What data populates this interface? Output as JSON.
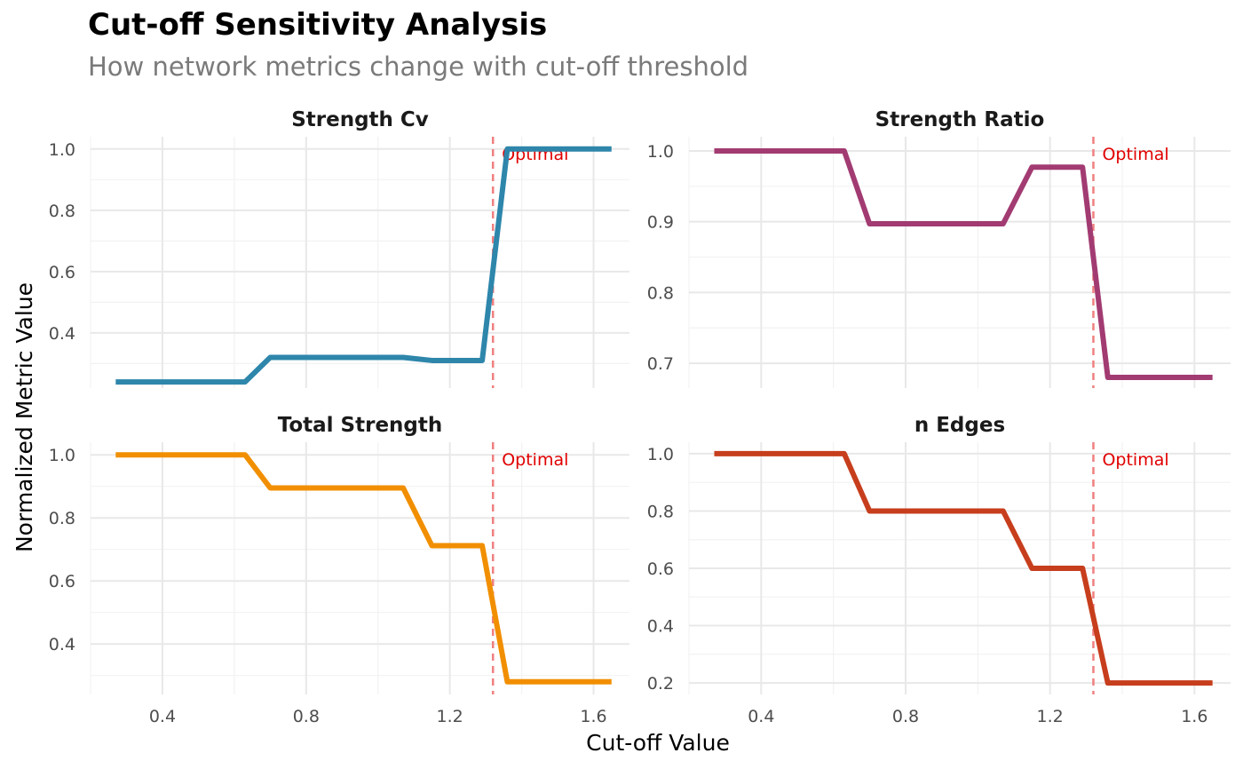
{
  "title": "Cut-off Sensitivity Analysis",
  "subtitle": "How network metrics change with cut-off threshold",
  "xlabel": "Cut-off Value",
  "ylabel": "Normalized Metric Value",
  "colors": {
    "optimal_line": "#f08080",
    "optimal_text": "#e00000"
  },
  "chart_data": [
    {
      "type": "line",
      "title": "Strength Cv",
      "color": "#2e86ab",
      "xlim": [
        0.2,
        1.7
      ],
      "ylim": [
        0.22,
        1.04
      ],
      "xticks": [
        0.4,
        0.8,
        1.2,
        1.6
      ],
      "xtick_labels": [
        "0.4",
        "0.8",
        "1.2",
        "1.6"
      ],
      "show_x_tick_labels": false,
      "yticks": [
        0.4,
        0.6,
        0.8,
        1.0
      ],
      "ytick_labels": [
        "0.4",
        "0.6",
        "0.8",
        "1.0"
      ],
      "grid": true,
      "x": [
        0.27,
        0.63,
        0.7,
        1.07,
        1.15,
        1.29,
        1.36,
        1.65
      ],
      "y": [
        0.24,
        0.24,
        0.32,
        0.32,
        0.31,
        0.31,
        1.0,
        1.0
      ],
      "vline": 1.32,
      "vline_label": "Optimal"
    },
    {
      "type": "line",
      "title": "Strength Ratio",
      "color": "#a23b72",
      "xlim": [
        0.2,
        1.7
      ],
      "ylim": [
        0.665,
        1.02
      ],
      "xticks": [
        0.4,
        0.8,
        1.2,
        1.6
      ],
      "xtick_labels": [
        "0.4",
        "0.8",
        "1.2",
        "1.6"
      ],
      "show_x_tick_labels": false,
      "yticks": [
        0.7,
        0.8,
        0.9,
        1.0
      ],
      "ytick_labels": [
        "0.7",
        "0.8",
        "0.9",
        "1.0"
      ],
      "grid": true,
      "x": [
        0.27,
        0.63,
        0.7,
        1.07,
        1.15,
        1.29,
        1.36,
        1.65
      ],
      "y": [
        1.0,
        1.0,
        0.897,
        0.897,
        0.977,
        0.977,
        0.68,
        0.68
      ],
      "vline": 1.32,
      "vline_label": "Optimal"
    },
    {
      "type": "line",
      "title": "Total Strength",
      "color": "#f18f01",
      "xlim": [
        0.2,
        1.7
      ],
      "ylim": [
        0.24,
        1.04
      ],
      "xticks": [
        0.4,
        0.8,
        1.2,
        1.6
      ],
      "xtick_labels": [
        "0.4",
        "0.8",
        "1.2",
        "1.6"
      ],
      "show_x_tick_labels": true,
      "yticks": [
        0.4,
        0.6,
        0.8,
        1.0
      ],
      "ytick_labels": [
        "0.4",
        "0.6",
        "0.8",
        "1.0"
      ],
      "grid": true,
      "x": [
        0.27,
        0.63,
        0.7,
        1.07,
        1.15,
        1.29,
        1.36,
        1.65
      ],
      "y": [
        1.0,
        1.0,
        0.895,
        0.895,
        0.712,
        0.712,
        0.28,
        0.28
      ],
      "vline": 1.32,
      "vline_label": "Optimal"
    },
    {
      "type": "line",
      "title": "n Edges",
      "color": "#c73e1d",
      "xlim": [
        0.2,
        1.7
      ],
      "ylim": [
        0.16,
        1.04
      ],
      "xticks": [
        0.4,
        0.8,
        1.2,
        1.6
      ],
      "xtick_labels": [
        "0.4",
        "0.8",
        "1.2",
        "1.6"
      ],
      "show_x_tick_labels": true,
      "yticks": [
        0.2,
        0.4,
        0.6,
        0.8,
        1.0
      ],
      "ytick_labels": [
        "0.2",
        "0.4",
        "0.6",
        "0.8",
        "1.0"
      ],
      "grid": true,
      "x": [
        0.27,
        0.63,
        0.7,
        1.07,
        1.15,
        1.29,
        1.36,
        1.65
      ],
      "y": [
        1.0,
        1.0,
        0.8,
        0.8,
        0.6,
        0.6,
        0.2,
        0.2
      ],
      "vline": 1.32,
      "vline_label": "Optimal"
    }
  ]
}
